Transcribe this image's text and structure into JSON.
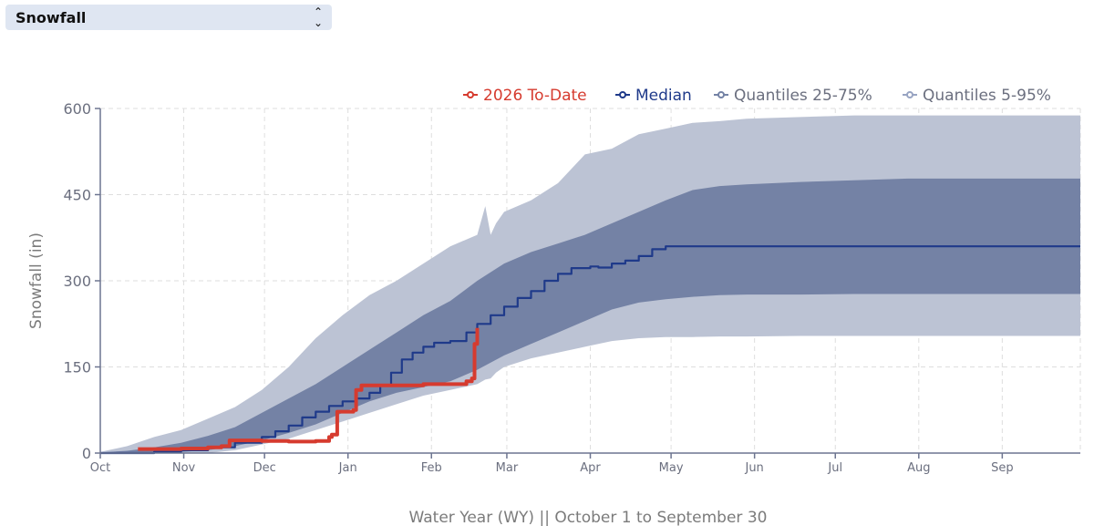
{
  "selector": {
    "value": "Snowfall",
    "icon": "chevron-up-down-icon"
  },
  "colors": {
    "todate": "#d63b2f",
    "median": "#1f3a8a",
    "q25_75": "#7482a5",
    "q5_95": "#bcc3d4",
    "axis": "#6d7590",
    "grid": "#dedede"
  },
  "chart_data": {
    "type": "area",
    "title": "",
    "xlabel": "Water Year (WY) || October 1 to September 30",
    "ylabel": "Snowfall (in)",
    "xlim": [
      0,
      364
    ],
    "ylim": [
      0,
      600
    ],
    "yticks": [
      0,
      150,
      300,
      450,
      600
    ],
    "ytick_labels": [
      "0",
      "150",
      "300",
      "450",
      "600"
    ],
    "xticks": [
      0,
      31,
      61,
      92,
      123,
      151,
      182,
      212,
      243,
      273,
      304,
      335
    ],
    "xtick_labels": [
      "Oct",
      "Nov",
      "Dec",
      "Jan",
      "Feb",
      "Mar",
      "Apr",
      "May",
      "Jun",
      "Jul",
      "Aug",
      "Sep"
    ],
    "x_unit": "day of water year",
    "grid": true,
    "legend_position": "top-right",
    "legend": [
      "2026 To-Date",
      "Median",
      "Quantiles 25-75%",
      "Quantiles 5-95%"
    ],
    "series": [
      {
        "name": "Quantiles 5-95%",
        "kind": "band",
        "x": [
          0,
          10,
          20,
          30,
          40,
          50,
          60,
          70,
          80,
          90,
          100,
          110,
          120,
          130,
          140,
          143,
          145,
          147,
          150,
          160,
          170,
          180,
          190,
          200,
          210,
          220,
          230,
          240,
          260,
          280,
          300,
          320,
          340,
          364
        ],
        "upper": [
          2,
          12,
          28,
          40,
          60,
          80,
          110,
          150,
          200,
          240,
          275,
          300,
          330,
          360,
          380,
          430,
          380,
          400,
          420,
          440,
          470,
          520,
          530,
          555,
          565,
          575,
          578,
          582,
          585,
          588,
          588,
          588,
          588,
          588
        ],
        "lower": [
          0,
          0,
          0,
          0,
          0,
          5,
          15,
          25,
          40,
          55,
          70,
          85,
          100,
          110,
          120,
          128,
          130,
          140,
          150,
          165,
          175,
          185,
          195,
          200,
          202,
          202,
          203,
          203,
          204,
          204,
          204,
          204,
          204,
          204
        ]
      },
      {
        "name": "Quantiles 25-75%",
        "kind": "band",
        "x": [
          0,
          10,
          20,
          30,
          40,
          50,
          60,
          70,
          80,
          90,
          100,
          110,
          120,
          130,
          140,
          150,
          160,
          170,
          180,
          190,
          200,
          210,
          220,
          230,
          240,
          260,
          280,
          300,
          320,
          340,
          364
        ],
        "upper": [
          1,
          4,
          10,
          18,
          30,
          45,
          70,
          95,
          120,
          150,
          180,
          210,
          240,
          265,
          300,
          330,
          350,
          365,
          380,
          400,
          420,
          440,
          458,
          465,
          468,
          472,
          475,
          478,
          478,
          478,
          478
        ],
        "lower": [
          0,
          0,
          0,
          2,
          5,
          12,
          22,
          35,
          50,
          70,
          90,
          105,
          115,
          125,
          145,
          170,
          190,
          210,
          230,
          250,
          262,
          268,
          272,
          275,
          276,
          276,
          277,
          277,
          277,
          277,
          277
        ]
      },
      {
        "name": "Median",
        "kind": "line",
        "x": [
          0,
          10,
          20,
          30,
          40,
          50,
          60,
          65,
          70,
          75,
          80,
          85,
          90,
          95,
          100,
          104,
          108,
          112,
          116,
          120,
          124,
          130,
          136,
          140,
          145,
          150,
          155,
          160,
          165,
          170,
          175,
          182,
          185,
          190,
          195,
          200,
          205,
          210,
          364
        ],
        "y": [
          0,
          0,
          2,
          5,
          10,
          18,
          28,
          38,
          48,
          62,
          72,
          82,
          90,
          95,
          105,
          117,
          140,
          163,
          175,
          185,
          192,
          195,
          210,
          225,
          240,
          255,
          270,
          282,
          300,
          312,
          322,
          325,
          323,
          330,
          335,
          343,
          355,
          360,
          360
        ]
      },
      {
        "name": "2026 To-Date",
        "kind": "line",
        "x": [
          14,
          30,
          40,
          45,
          48,
          50,
          60,
          70,
          80,
          85,
          86,
          88,
          94,
          95,
          97,
          110,
          120,
          130,
          136,
          138,
          139,
          140
        ],
        "y": [
          7,
          8,
          10,
          12,
          22,
          22,
          21,
          20,
          21,
          28,
          32,
          72,
          75,
          110,
          118,
          118,
          120,
          120,
          125,
          130,
          190,
          218
        ]
      }
    ]
  }
}
